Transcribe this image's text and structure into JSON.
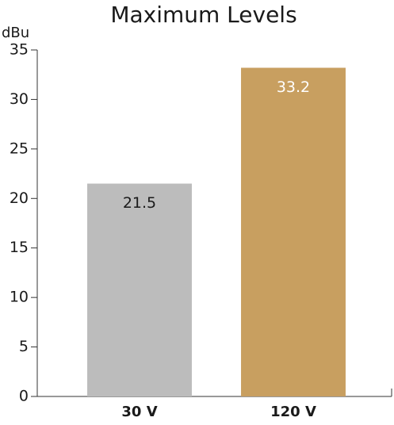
{
  "chart_data": {
    "type": "bar",
    "title": "Maximum Levels",
    "y_label": "dBu",
    "categories": [
      "30 V",
      "120 V"
    ],
    "values": [
      21.5,
      33.2
    ],
    "colors": [
      "#bcbcbc",
      "#c89f60"
    ],
    "label_colors": [
      "#1a1a1a",
      "#ffffff"
    ],
    "ylim": [
      0,
      35
    ],
    "yticks": [
      0,
      5,
      10,
      15,
      20,
      25,
      30,
      35
    ],
    "grid": false
  }
}
